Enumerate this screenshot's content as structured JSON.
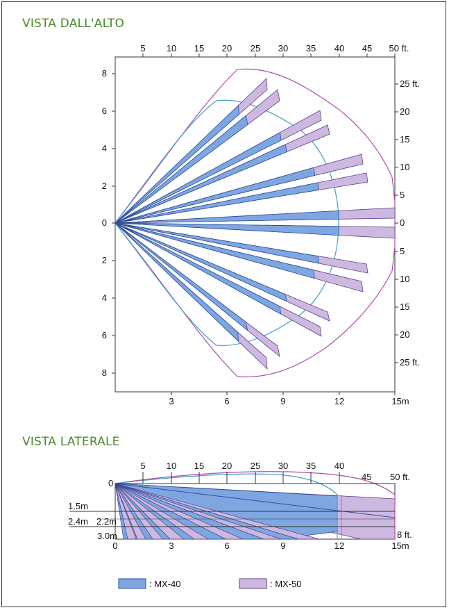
{
  "colors": {
    "title": "#4b8a2b",
    "mx40_fill": "#7ea6e0",
    "mx40_stroke": "#2b4f9e",
    "mx50_fill": "#cdb8e0",
    "mx50_stroke": "#5c3f86",
    "mx40_outline": "#3ea0c8",
    "mx50_outline": "#b04ca6"
  },
  "top_view": {
    "title": "VISTA DALL'ALTO",
    "ft_top_ticks": [
      "5",
      "10",
      "15",
      "20",
      "25",
      "30",
      "35",
      "40",
      "45",
      "50 ft."
    ],
    "ft_right_ticks": [
      "25 ft.",
      "20",
      "15",
      "10",
      "5",
      "0",
      "5",
      "10",
      "15",
      "20",
      "25 ft."
    ],
    "m_left_ticks": [
      "8",
      "6",
      "4",
      "2",
      "0",
      "2",
      "4",
      "6",
      "8"
    ],
    "m_bottom_ticks": [
      "3",
      "6",
      "9",
      "12",
      "15m"
    ]
  },
  "side_view": {
    "title": "VISTA LATERALE",
    "ft_top_ticks": [
      "5",
      "10",
      "15",
      "20",
      "25",
      "30",
      "35",
      "40"
    ],
    "ft_top_end": [
      "45",
      "50 ft."
    ],
    "zero_label": "0",
    "height_labels": [
      "1.5m",
      "2.2m",
      "2.4m",
      "3.0m"
    ],
    "right_label": "8 ft.",
    "m_bottom_ticks": [
      "0",
      "3",
      "6",
      "9",
      "12",
      "15m"
    ]
  },
  "legend": {
    "mx40_label": ": MX-40",
    "mx50_label": ": MX-50"
  }
}
